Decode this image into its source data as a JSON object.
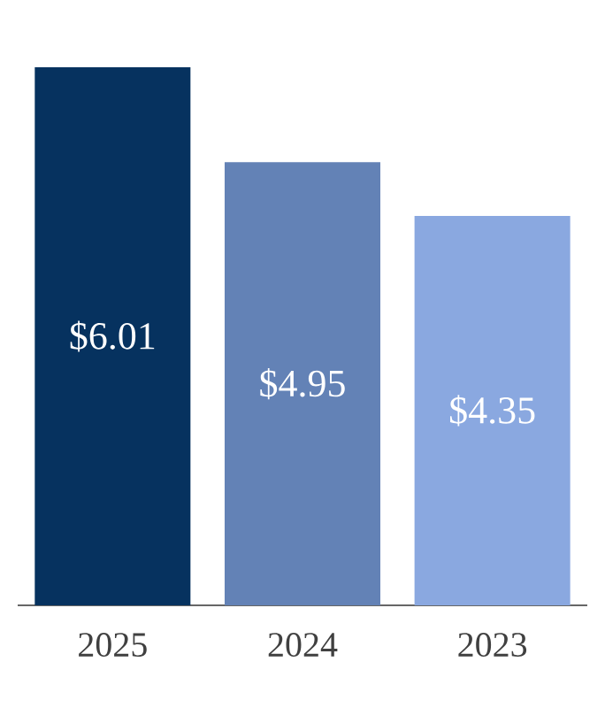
{
  "chart_data": {
    "type": "bar",
    "categories": [
      "2025",
      "2024",
      "2023"
    ],
    "values": [
      6.01,
      4.95,
      4.35
    ],
    "colors": [
      "#06325f",
      "#6382b6",
      "#8aa8e0"
    ],
    "value_labels": [
      "$6.01",
      "$4.95",
      "$4.35"
    ]
  }
}
